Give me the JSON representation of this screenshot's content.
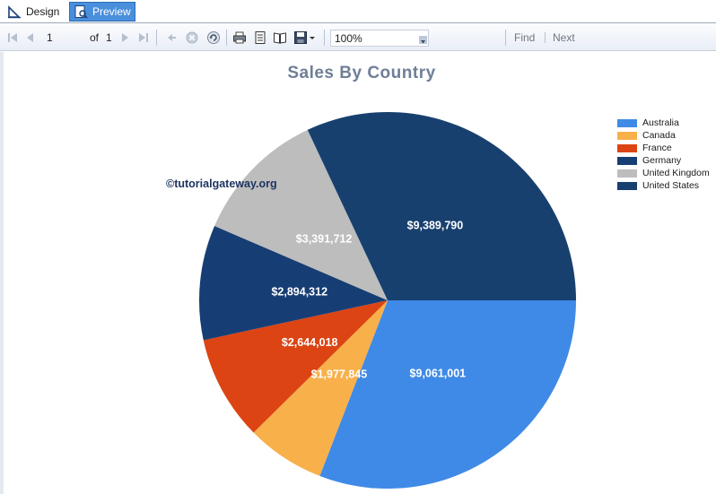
{
  "tabs": [
    {
      "label": "Design",
      "active": false
    },
    {
      "label": "Preview",
      "active": true
    }
  ],
  "toolbar": {
    "page_value": "1",
    "of_label": "of",
    "total_pages": "1",
    "zoom": "100%",
    "find_label": "Find",
    "next_label": "Next"
  },
  "report": {
    "watermark": "©tutorialgateway.org"
  },
  "chart_data": {
    "type": "pie",
    "title": "Sales By Country",
    "slices": [
      {
        "label": "Australia",
        "value": 9061001,
        "value_label": "$9,061,001",
        "color": "#3f8ae6"
      },
      {
        "label": "Canada",
        "value": 1977845,
        "value_label": "$1,977,845",
        "color": "#f8b04b"
      },
      {
        "label": "France",
        "value": 2644018,
        "value_label": "$2,644,018",
        "color": "#dc4414"
      },
      {
        "label": "Germany",
        "value": 2894312,
        "value_label": "$2,894,312",
        "color": "#173e74"
      },
      {
        "label": "United Kingdom",
        "value": 3391712,
        "value_label": "$3,391,712",
        "color": "#bdbdbd"
      },
      {
        "label": "United States",
        "value": 9389790,
        "value_label": "$9,389,790",
        "color": "#17406f"
      }
    ],
    "start_angle": "3 o'clock, clockwise",
    "legend_position": "top-right"
  }
}
